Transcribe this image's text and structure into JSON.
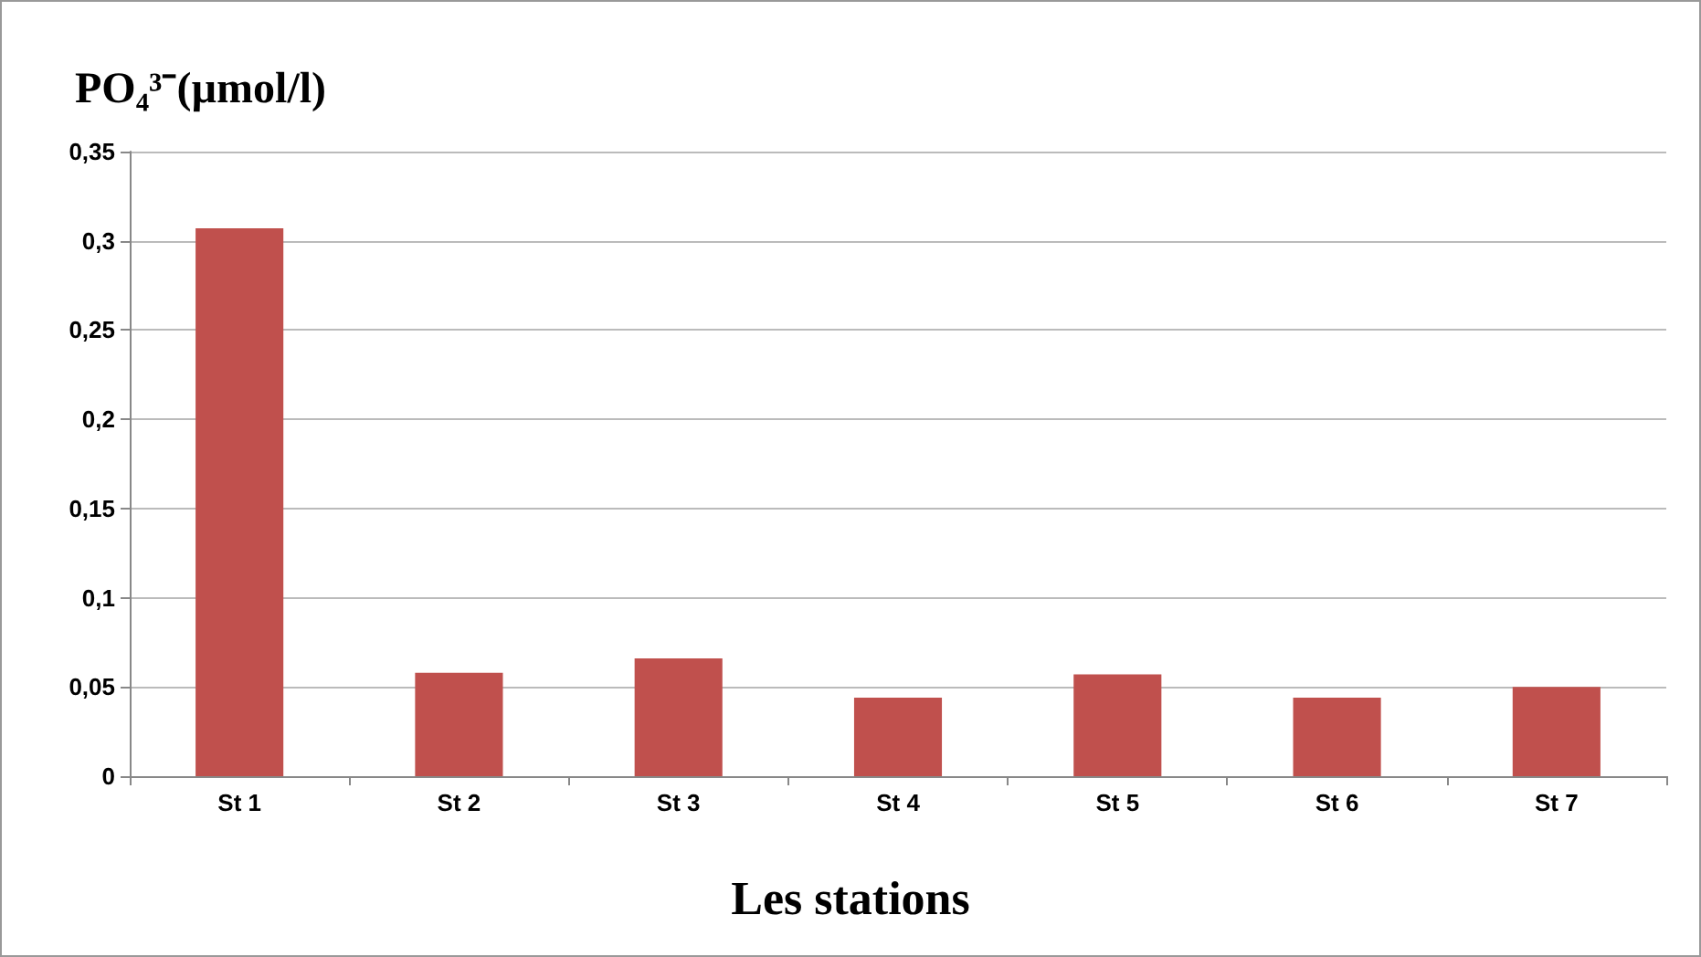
{
  "chart_data": {
    "type": "bar",
    "ylabel": "PO₄³⁻(µmol/l)",
    "xlabel": "Les stations",
    "categories": [
      "St 1",
      "St 2",
      "St 3",
      "St 4",
      "St 5",
      "St 6",
      "St 7"
    ],
    "values": [
      0.307,
      0.058,
      0.066,
      0.044,
      0.057,
      0.044,
      0.05
    ],
    "color": "#c0504d",
    "ylim": [
      0,
      0.35
    ],
    "yticks": [
      0,
      {
        "value": 0.05,
        "label": "0,05"
      },
      {
        "value": 0.1,
        "label": "0,1"
      },
      {
        "value": 0.15,
        "label": "0,15"
      },
      {
        "value": 0.2,
        "label": "0,2"
      },
      {
        "value": 0.25,
        "label": "0,25"
      },
      {
        "value": 0.3,
        "label": "0,3"
      },
      {
        "value": 0.35,
        "label": "0,35"
      }
    ],
    "grid": "y"
  }
}
